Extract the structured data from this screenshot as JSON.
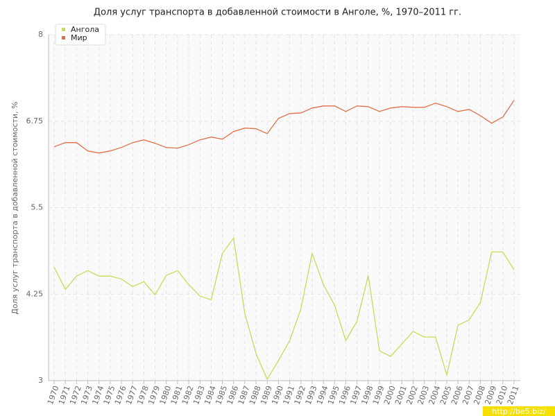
{
  "chart_data": {
    "type": "line",
    "title": "Доля услуг транспорта в добавленной стоимости в Анголе, %, 1970–2011 гг.",
    "y_label": "Доля услуг транспорта в добавленной стоимости, %",
    "watermark": "http://be5.biz/",
    "categories": [
      "1970",
      "1971",
      "1972",
      "1973",
      "1974",
      "1975",
      "1976",
      "1977",
      "1978",
      "1979",
      "1980",
      "1981",
      "1982",
      "1983",
      "1984",
      "1985",
      "1986",
      "1987",
      "1988",
      "1989",
      "1990",
      "1991",
      "1992",
      "1993",
      "1994",
      "1995",
      "1996",
      "1997",
      "1998",
      "1999",
      "2000",
      "2001",
      "2002",
      "2003",
      "2004",
      "2005",
      "2006",
      "2007",
      "2008",
      "2009",
      "2010",
      "2011"
    ],
    "series": [
      {
        "name": "Ангола",
        "color": "#c5dc5a",
        "values": [
          4.64,
          4.32,
          4.51,
          4.59,
          4.51,
          4.51,
          4.47,
          4.36,
          4.43,
          4.24,
          4.52,
          4.59,
          4.39,
          4.22,
          4.17,
          4.84,
          5.06,
          3.97,
          3.39,
          3.02,
          3.29,
          3.58,
          4.04,
          4.84,
          4.39,
          4.09,
          3.58,
          3.86,
          4.52,
          3.43,
          3.35,
          3.53,
          3.71,
          3.63,
          3.63,
          3.08,
          3.8,
          3.88,
          4.13,
          4.86,
          4.86,
          4.6
        ]
      },
      {
        "name": "Мир",
        "color": "#e0704a",
        "values": [
          6.38,
          6.44,
          6.44,
          6.32,
          6.29,
          6.32,
          6.37,
          6.44,
          6.48,
          6.43,
          6.37,
          6.36,
          6.41,
          6.48,
          6.52,
          6.49,
          6.6,
          6.65,
          6.64,
          6.57,
          6.79,
          6.86,
          6.87,
          6.94,
          6.97,
          6.97,
          6.89,
          6.97,
          6.96,
          6.89,
          6.94,
          6.96,
          6.95,
          6.95,
          7.01,
          6.96,
          6.89,
          6.92,
          6.83,
          6.72,
          6.81,
          7.05
        ]
      }
    ],
    "ylim": [
      3,
      8
    ],
    "yticks": [
      3,
      4.25,
      5.5,
      6.75,
      8
    ],
    "grid": true,
    "legend": "top-left"
  }
}
